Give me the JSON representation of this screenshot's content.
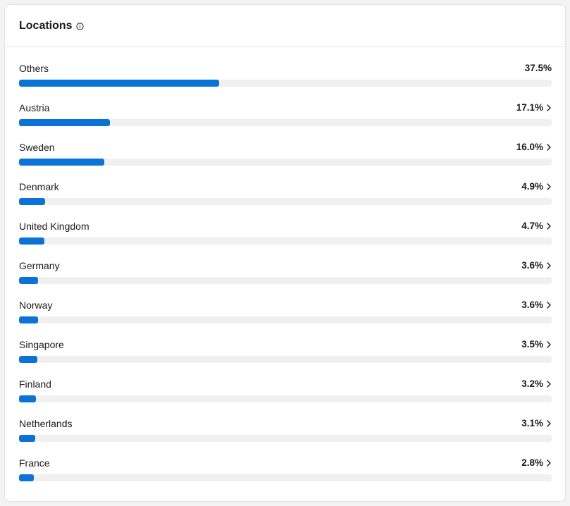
{
  "header": {
    "title": "Locations",
    "info_icon": "info-circle-icon"
  },
  "colors": {
    "bar_fill": "#0b73d8",
    "bar_track": "#f0f0f0"
  },
  "bar_scale_max_percent": 100,
  "locations": [
    {
      "name": "Others",
      "percent_label": "37.5%",
      "percent": 37.5,
      "has_chevron": false
    },
    {
      "name": "Austria",
      "percent_label": "17.1%",
      "percent": 17.1,
      "has_chevron": true
    },
    {
      "name": "Sweden",
      "percent_label": "16.0%",
      "percent": 16.0,
      "has_chevron": true
    },
    {
      "name": "Denmark",
      "percent_label": "4.9%",
      "percent": 4.9,
      "has_chevron": true
    },
    {
      "name": "United Kingdom",
      "percent_label": "4.7%",
      "percent": 4.7,
      "has_chevron": true
    },
    {
      "name": "Germany",
      "percent_label": "3.6%",
      "percent": 3.6,
      "has_chevron": true
    },
    {
      "name": "Norway",
      "percent_label": "3.6%",
      "percent": 3.6,
      "has_chevron": true
    },
    {
      "name": "Singapore",
      "percent_label": "3.5%",
      "percent": 3.5,
      "has_chevron": true
    },
    {
      "name": "Finland",
      "percent_label": "3.2%",
      "percent": 3.2,
      "has_chevron": true
    },
    {
      "name": "Netherlands",
      "percent_label": "3.1%",
      "percent": 3.1,
      "has_chevron": true
    },
    {
      "name": "France",
      "percent_label": "2.8%",
      "percent": 2.8,
      "has_chevron": true
    }
  ]
}
